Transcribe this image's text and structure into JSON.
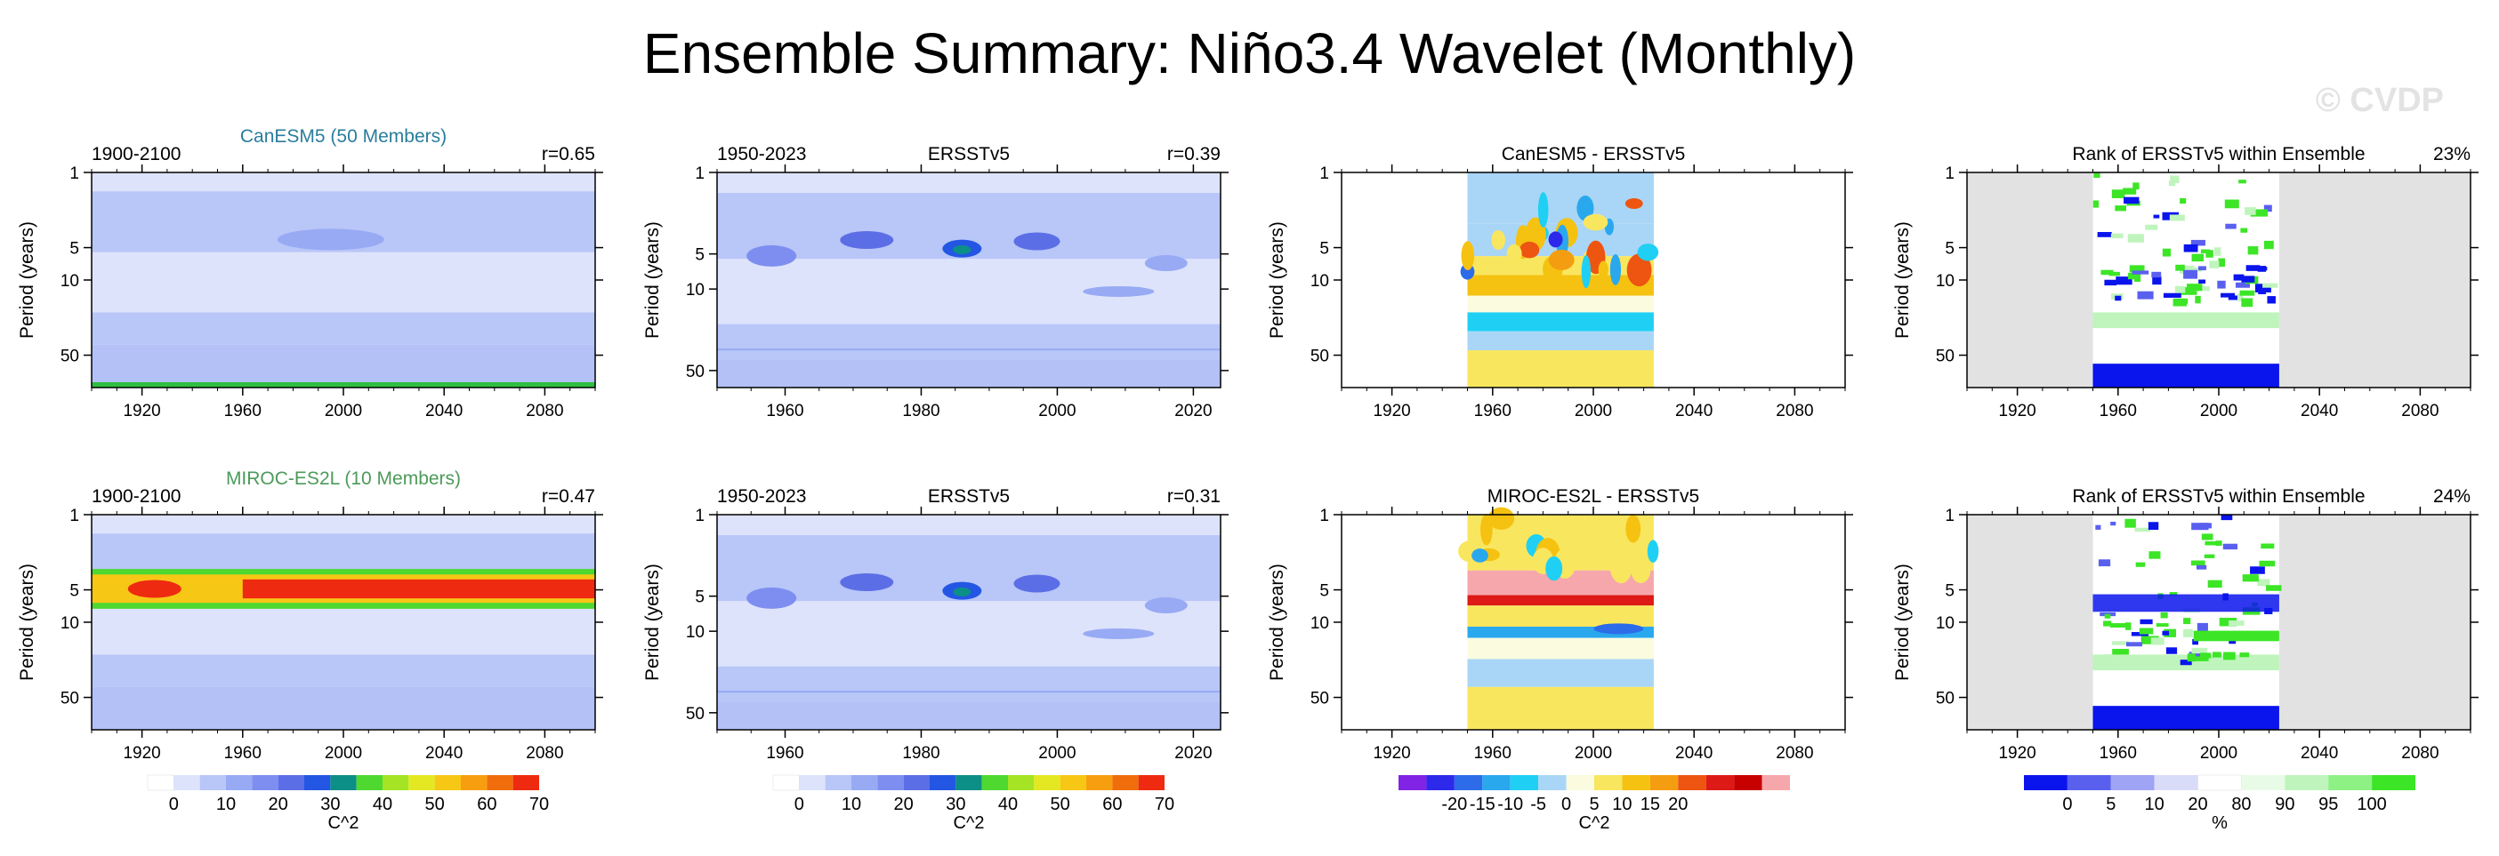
{
  "title": "Ensemble Summary: Niño3.4 Wavelet (Monthly)",
  "watermark": "© CVDP",
  "colors": {
    "power": [
      "#ffffff",
      "#dde3fb",
      "#b8c6f8",
      "#98aaf4",
      "#7e8ef0",
      "#5c6ee6",
      "#2456e4",
      "#0b8f86",
      "#4fd830",
      "#a4e424",
      "#e4e822",
      "#f7c716",
      "#f79e10",
      "#f06d0b",
      "#ee2a10"
    ],
    "diff": [
      "#8023e4",
      "#2d29ea",
      "#2d6ce9",
      "#2aa8ee",
      "#1fd0f4",
      "#a9d6f6",
      "#fbfbe0",
      "#f9e65f",
      "#f5c211",
      "#f59d10",
      "#ed5511",
      "#dd1a16",
      "#c70000",
      "#f6a7ab"
    ],
    "rank": [
      "#0a14ec",
      "#5a60ee",
      "#9fa4f4",
      "#d9dcf8",
      "#ffffff",
      "#e8fbe6",
      "#bff5bc",
      "#8ef184",
      "#3ce526"
    ]
  },
  "power_colorbar": {
    "labels": [
      "0",
      "10",
      "20",
      "30",
      "40",
      "50",
      "60",
      "70"
    ],
    "unit": "C^2"
  },
  "diff_colorbar": {
    "labels": [
      "-20",
      "-15",
      "-10",
      "-5",
      "0",
      "5",
      "10",
      "15",
      "20"
    ],
    "unit": "C^2"
  },
  "rank_colorbar": {
    "labels": [
      "0",
      "5",
      "10",
      "20",
      "80",
      "90",
      "95",
      "100"
    ],
    "unit": "%"
  },
  "chart_data": [
    {
      "type": "heatmap",
      "kind": "power",
      "super_title": "CanESM5 (50 Members)",
      "super_color": "#2a7d9c",
      "left_label": "1900-2100",
      "center_label": "",
      "right_label": "r=0.65",
      "ylabel": "Period (years)",
      "xlim": [
        1900,
        2100
      ],
      "data_range": [
        1900,
        2100
      ],
      "ylim": [
        1,
        100
      ],
      "xticks": [
        1920,
        1960,
        2000,
        2040,
        2080
      ],
      "yticks": [
        1,
        5,
        10,
        50
      ],
      "scale": "log"
    },
    {
      "type": "heatmap",
      "kind": "power",
      "super_title": "",
      "super_color": "#000000",
      "left_label": "1950-2023",
      "center_label": "ERSSTv5",
      "right_label": "r=0.39",
      "ylabel": "Period (years)",
      "xlim": [
        1950,
        2024
      ],
      "data_range": [
        1950,
        2024
      ],
      "ylim": [
        1,
        70
      ],
      "xticks": [
        1960,
        1980,
        2000,
        2020
      ],
      "yticks": [
        1,
        5,
        10,
        50
      ],
      "scale": "log"
    },
    {
      "type": "heatmap",
      "kind": "diff",
      "super_title": "",
      "super_color": "#000000",
      "left_label": "",
      "center_label": "CanESM5 - ERSSTv5",
      "right_label": "",
      "ylabel": "Period (years)",
      "xlim": [
        1900,
        2100
      ],
      "data_range": [
        1950,
        2024
      ],
      "ylim": [
        1,
        100
      ],
      "xticks": [
        1920,
        1960,
        2000,
        2040,
        2080
      ],
      "yticks": [
        1,
        5,
        10,
        50
      ],
      "scale": "log"
    },
    {
      "type": "heatmap",
      "kind": "rank",
      "super_title": "",
      "super_color": "#000000",
      "left_label": "",
      "center_label": "Rank of ERSSTv5 within Ensemble",
      "right_label": "23%",
      "ylabel": "Period (years)",
      "xlim": [
        1900,
        2100
      ],
      "data_range": [
        1950,
        2024
      ],
      "ylim": [
        1,
        100
      ],
      "xticks": [
        1920,
        1960,
        2000,
        2040,
        2080
      ],
      "yticks": [
        1,
        5,
        10,
        50
      ],
      "scale": "log"
    },
    {
      "type": "heatmap",
      "kind": "power",
      "super_title": "MIROC-ES2L (10 Members)",
      "super_color": "#4d9a5a",
      "left_label": "1900-2100",
      "center_label": "",
      "right_label": "r=0.47",
      "ylabel": "Period (years)",
      "xlim": [
        1900,
        2100
      ],
      "data_range": [
        1900,
        2100
      ],
      "ylim": [
        1,
        100
      ],
      "xticks": [
        1920,
        1960,
        2000,
        2040,
        2080
      ],
      "yticks": [
        1,
        5,
        10,
        50
      ],
      "scale": "log"
    },
    {
      "type": "heatmap",
      "kind": "power",
      "super_title": "",
      "super_color": "#000000",
      "left_label": "1950-2023",
      "center_label": "ERSSTv5",
      "right_label": "r=0.31",
      "ylabel": "Period (years)",
      "xlim": [
        1950,
        2024
      ],
      "data_range": [
        1950,
        2024
      ],
      "ylim": [
        1,
        70
      ],
      "xticks": [
        1960,
        1980,
        2000,
        2020
      ],
      "yticks": [
        1,
        5,
        10,
        50
      ],
      "scale": "log"
    },
    {
      "type": "heatmap",
      "kind": "diff",
      "super_title": "",
      "super_color": "#000000",
      "left_label": "",
      "center_label": "MIROC-ES2L - ERSSTv5",
      "right_label": "",
      "ylabel": "Period (years)",
      "xlim": [
        1900,
        2100
      ],
      "data_range": [
        1950,
        2024
      ],
      "ylim": [
        1,
        100
      ],
      "xticks": [
        1920,
        1960,
        2000,
        2040,
        2080
      ],
      "yticks": [
        1,
        5,
        10,
        50
      ],
      "scale": "log"
    },
    {
      "type": "heatmap",
      "kind": "rank",
      "super_title": "",
      "super_color": "#000000",
      "left_label": "",
      "center_label": "Rank of ERSSTv5 within Ensemble",
      "right_label": "24%",
      "ylabel": "Period (years)",
      "xlim": [
        1900,
        2100
      ],
      "data_range": [
        1950,
        2024
      ],
      "ylim": [
        1,
        100
      ],
      "xticks": [
        1920,
        1960,
        2000,
        2040,
        2080
      ],
      "yticks": [
        1,
        5,
        10,
        50
      ],
      "scale": "log"
    }
  ]
}
